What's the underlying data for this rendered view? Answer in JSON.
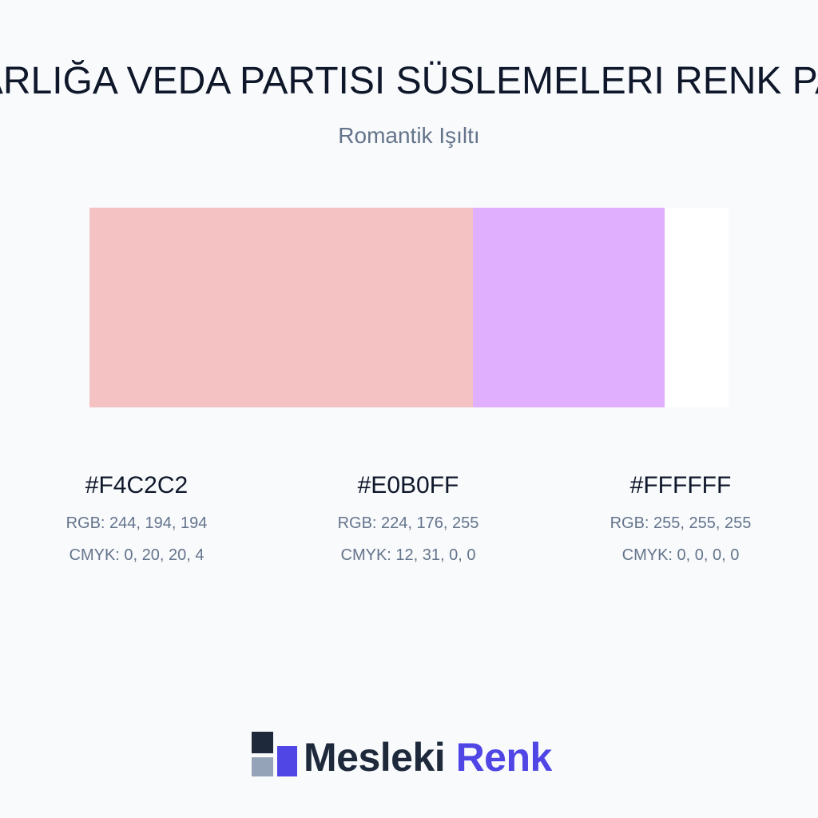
{
  "header": {
    "title": "ARLIĞA VEDA PARTISI SÜSLEMELERI RENK PA",
    "subtitle": "Romantik Işıltı"
  },
  "palette": [
    {
      "hex": "#F4C2C2",
      "rgb": "RGB: 244, 194, 194",
      "cmyk": "CMYK: 0, 20, 20, 4"
    },
    {
      "hex": "#E0B0FF",
      "rgb": "RGB: 224, 176, 255",
      "cmyk": "CMYK: 12, 31, 0, 0"
    },
    {
      "hex": "#FFFFFF",
      "rgb": "RGB: 255, 255, 255",
      "cmyk": "CMYK: 0, 0, 0, 0"
    }
  ],
  "logo": {
    "word1": "Mesleki",
    "word2": "Renk"
  }
}
